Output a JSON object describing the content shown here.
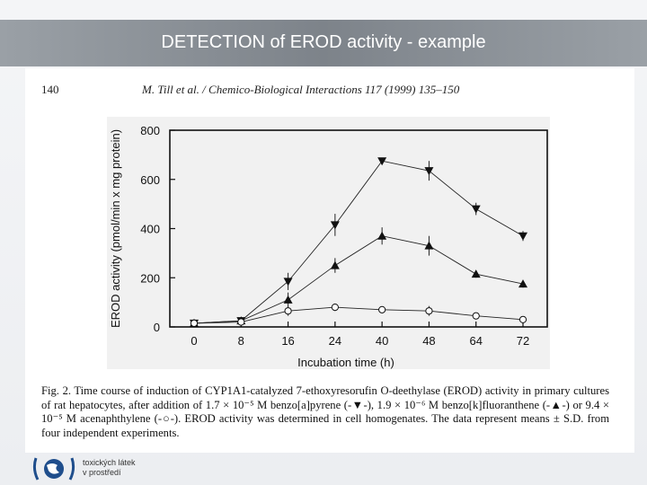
{
  "slide": {
    "title": "DETECTION of EROD activity - example"
  },
  "paper": {
    "page_number": "140",
    "citation": "M. Till et al. / Chemico-Biological Interactions 117 (1999) 135–150",
    "caption": "Fig. 2. Time course of induction of CYP1A1-catalyzed 7-ethoxyresorufin O-deethylase (EROD) activity in primary cultures of rat hepatocytes, after addition of 1.7 × 10⁻⁵ M benzo[a]pyrene (-▼-), 1.9 × 10⁻⁶ M benzo[k]fluoranthene (-▲-) or 9.4 × 10⁻⁵ M acenaphthylene (-○-). EROD activity was determined in cell homogenates. The data represent means ± S.D. from four independent experiments."
  },
  "footer": {
    "logo_text_line1": "toxických látek",
    "logo_text_line2": "v prostředí"
  },
  "chart_data": {
    "type": "line",
    "categories": [
      "0",
      "8",
      "16",
      "24",
      "40",
      "48",
      "64",
      "72"
    ],
    "xlabel": "Incubation time (h)",
    "ylabel": "EROD activity (pmol/min x mg protein)",
    "ylim": [
      0,
      800
    ],
    "yticks": [
      "0",
      "200",
      "400",
      "600",
      "800"
    ],
    "grid": false,
    "legend": "none",
    "series": [
      {
        "marker": "triangle-down",
        "values": [
          15,
          25,
          185,
          415,
          675,
          635,
          480,
          370
        ],
        "errors": [
          10,
          10,
          35,
          45,
          0,
          40,
          25,
          20
        ]
      },
      {
        "marker": "triangle-up",
        "values": [
          15,
          25,
          110,
          250,
          370,
          330,
          215,
          175
        ],
        "errors": [
          10,
          10,
          30,
          30,
          35,
          40,
          15,
          15
        ]
      },
      {
        "marker": "circle-open",
        "values": [
          15,
          20,
          65,
          80,
          70,
          65,
          45,
          30
        ],
        "errors": [
          10,
          10,
          20,
          15,
          10,
          20,
          10,
          10
        ]
      }
    ],
    "colors": {
      "line": "#222222",
      "marker": "#111111",
      "panel": "#f1f1f1"
    }
  }
}
